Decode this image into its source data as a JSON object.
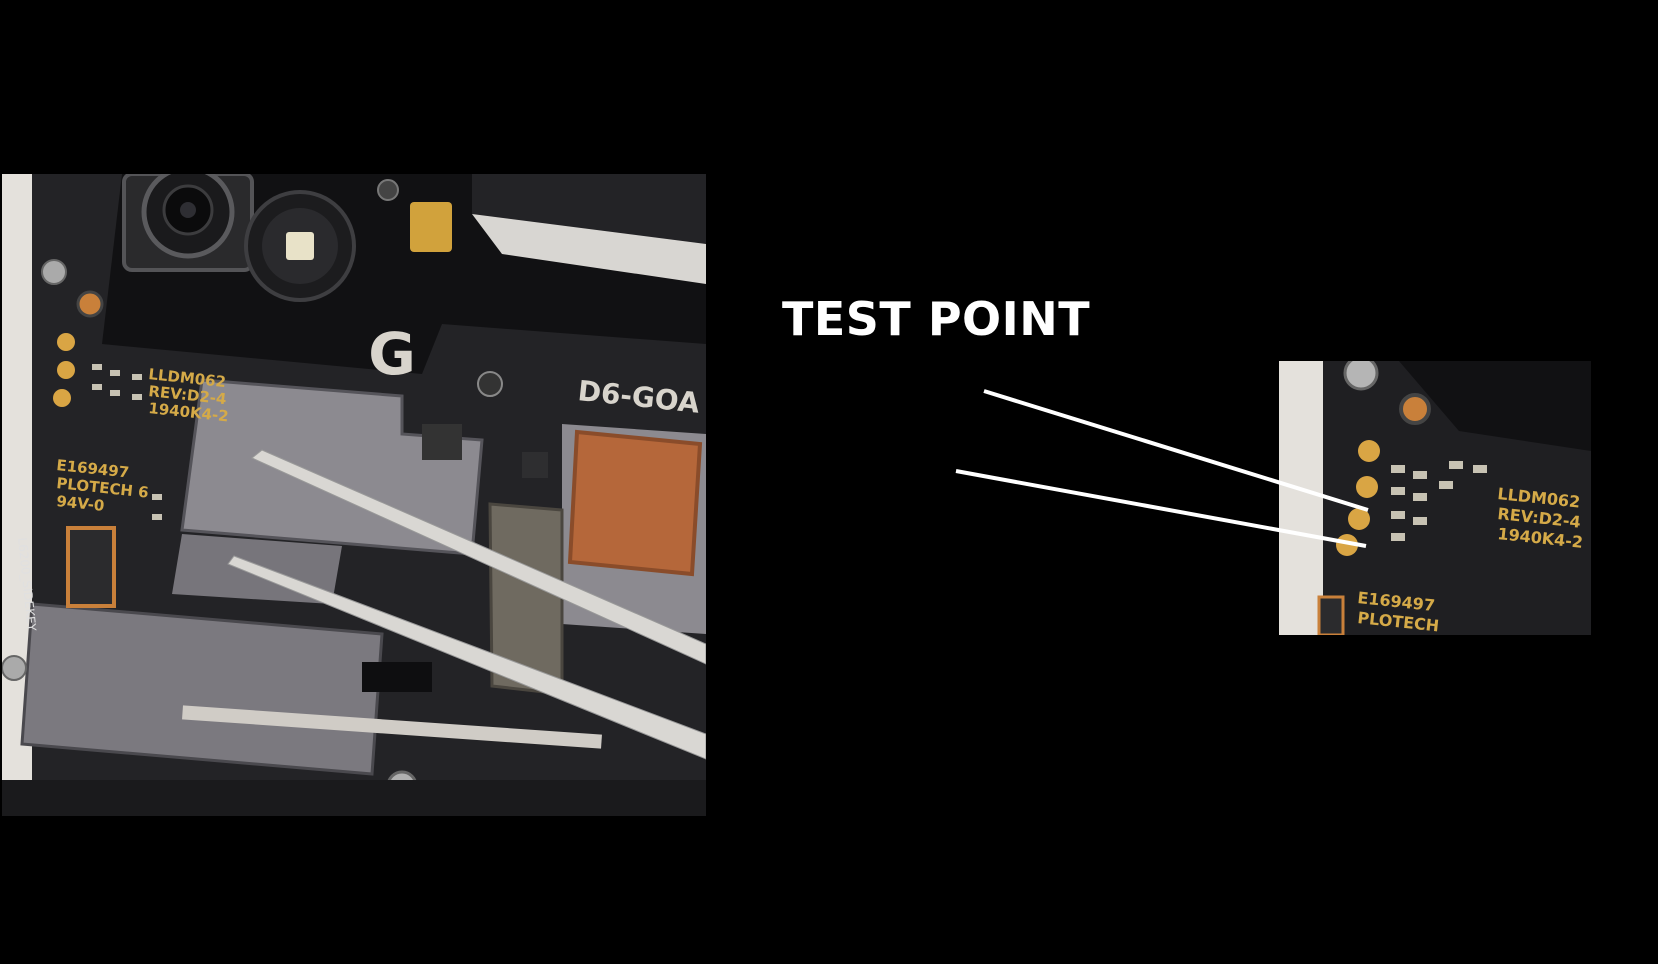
{
  "title": "TEST POINT",
  "board_photo": {
    "logo_letter": "G",
    "labels": {
      "model": "D6-GOA",
      "board_id": "LLDM062",
      "revision": "REV:D2-4",
      "date_code": "1940K4-2",
      "cert": "E169497",
      "maker": "PLOTECH 6",
      "rating": "94V-0",
      "side_key": "L6200_SIDEKEY"
    }
  },
  "zoom_photo": {
    "labels": {
      "board_id": "LLDM062",
      "revision": "REV:D2-4",
      "date_code": "1940K4-2",
      "cert": "E169497",
      "maker": "PLOTECH"
    }
  },
  "colors": {
    "background": "#000000",
    "title": "#ffffff",
    "pointer": "#ffffff",
    "pcb": "#1b1b1e",
    "pad": "#d9a544",
    "shield": "#8c8a90",
    "copper": "#b5673a",
    "frame": "#e4e1dc",
    "backdrop": "#26b6e0"
  }
}
